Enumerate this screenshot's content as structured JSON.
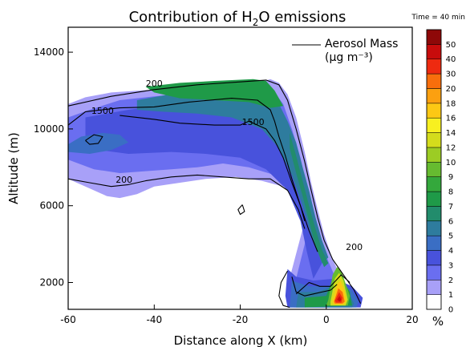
{
  "chart_data": {
    "type": "heatmap",
    "title_main": "Contribution of H",
    "title_sub": "2",
    "title_end": "O emissions",
    "time_label": "Time = 40 min",
    "xlabel": "Distance along X (km)",
    "ylabel": "Altitude (m)",
    "xlim": [
      -60,
      20
    ],
    "ylim": [
      600,
      15300
    ],
    "x_ticks": [
      -60,
      -40,
      -20,
      0,
      20
    ],
    "y_ticks": [
      2000,
      6000,
      10000,
      14000
    ],
    "legend_title_line1": "Aerosol Mass",
    "legend_title_line2": "(μg m⁻³)",
    "colorbar_unit": "%",
    "colorbar_levels": [
      0,
      1,
      2,
      3,
      4,
      5,
      6,
      7,
      8,
      9,
      10,
      12,
      14,
      16,
      18,
      20,
      30,
      40,
      50
    ],
    "colorbar_colors": [
      "#ffffff",
      "#a8a0f8",
      "#6a6ef0",
      "#4852dc",
      "#3a6ec4",
      "#2e7c9e",
      "#228c6c",
      "#1f9a48",
      "#34a83c",
      "#66bb30",
      "#9ccc24",
      "#d4dc1c",
      "#f8f020",
      "#fcc814",
      "#fca010",
      "#f86e0c",
      "#ee2a10",
      "#c80c0c",
      "#8e0808"
    ],
    "contours": [
      {
        "level": "200",
        "label_points": [
          [
            -40,
            12200
          ],
          [
            -47,
            7200
          ],
          [
            6.5,
            3700
          ]
        ]
      },
      {
        "level": "1500",
        "label_points": [
          [
            -52,
            10800
          ],
          [
            -17,
            10200
          ]
        ]
      }
    ]
  }
}
